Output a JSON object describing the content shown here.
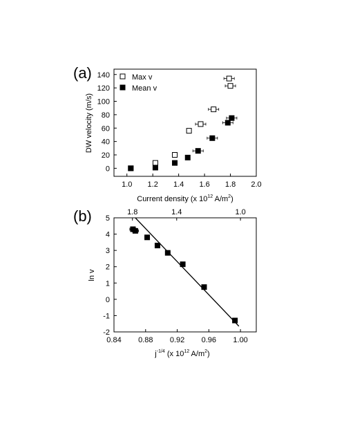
{
  "chart_data": [
    {
      "panel_label": "(a)",
      "type": "scatter",
      "xlabel": "Current density (x 10",
      "xlabel_exp": "12",
      "xlabel_unit": " A/m",
      "xlabel_unit_exp": "2",
      "xlabel_close": ")",
      "ylabel": "DW velocity (m/s)",
      "xlim": [
        0.9,
        2.0
      ],
      "ylim": [
        -12,
        148
      ],
      "xticks": [
        "1.0",
        "1.2",
        "1.4",
        "1.6",
        "1.8",
        "2.0"
      ],
      "xtick_values": [
        1.0,
        1.2,
        1.4,
        1.6,
        1.8,
        2.0
      ],
      "yticks": [
        "0",
        "20",
        "40",
        "60",
        "80",
        "100",
        "120",
        "140"
      ],
      "ytick_values": [
        0,
        20,
        40,
        60,
        80,
        100,
        120,
        140
      ],
      "legend_position": "top-left",
      "series": [
        {
          "name": "Max v",
          "marker": "open-square",
          "points": [
            {
              "x": 1.03,
              "y": 0,
              "xerr": 0
            },
            {
              "x": 1.22,
              "y": 8,
              "xerr": 0
            },
            {
              "x": 1.37,
              "y": 20,
              "xerr": 0
            },
            {
              "x": 1.48,
              "y": 56,
              "xerr": 0
            },
            {
              "x": 1.57,
              "y": 66,
              "xerr": 0.04
            },
            {
              "x": 1.67,
              "y": 88,
              "xerr": 0.04
            },
            {
              "x": 1.79,
              "y": 134,
              "xerr": 0.04
            },
            {
              "x": 1.8,
              "y": 123,
              "xerr": 0.04
            }
          ]
        },
        {
          "name": "Mean v",
          "marker": "filled-square",
          "points": [
            {
              "x": 1.03,
              "y": 0,
              "xerr": 0
            },
            {
              "x": 1.22,
              "y": 1,
              "xerr": 0
            },
            {
              "x": 1.37,
              "y": 8,
              "xerr": 0
            },
            {
              "x": 1.47,
              "y": 16,
              "xerr": 0
            },
            {
              "x": 1.55,
              "y": 26,
              "xerr": 0.04
            },
            {
              "x": 1.66,
              "y": 45,
              "xerr": 0.04
            },
            {
              "x": 1.78,
              "y": 68,
              "xerr": 0.04
            },
            {
              "x": 1.81,
              "y": 75,
              "xerr": 0.04
            }
          ]
        }
      ]
    },
    {
      "panel_label": "(b)",
      "type": "scatter",
      "xlabel": "j",
      "xlabel_exp": "-1/4",
      "xlabel_mid": " (x 10",
      "xlabel_mid_exp": "12",
      "xlabel_unit": " A/m",
      "xlabel_unit_exp": "2",
      "xlabel_close": ")",
      "ylabel": "ln v",
      "xlim": [
        0.84,
        1.02
      ],
      "ylim": [
        -2,
        5
      ],
      "xticks": [
        "0.84",
        "0.88",
        "0.92",
        "0.96",
        "1.00"
      ],
      "xtick_values": [
        0.84,
        0.88,
        0.92,
        0.96,
        1.0
      ],
      "yticks": [
        "-2",
        "-1",
        "0",
        "1",
        "2",
        "3",
        "4",
        "5"
      ],
      "ytick_values": [
        -2,
        -1,
        0,
        1,
        2,
        3,
        4,
        5
      ],
      "top_axis_ticks": [
        "1.8",
        "1.4",
        "1.0"
      ],
      "top_axis_values": [
        1.8,
        1.4,
        1.0
      ],
      "series": [
        {
          "name": "",
          "marker": "filled-square",
          "points": [
            {
              "x": 0.864,
              "y": 4.3,
              "xerr": 0.004
            },
            {
              "x": 0.867,
              "y": 4.2,
              "xerr": 0.004
            },
            {
              "x": 0.882,
              "y": 3.8,
              "xerr": 0.003
            },
            {
              "x": 0.895,
              "y": 3.3,
              "xerr": 0.003
            },
            {
              "x": 0.908,
              "y": 2.85,
              "xerr": 0.003
            },
            {
              "x": 0.927,
              "y": 2.15,
              "xerr": 0.003
            },
            {
              "x": 0.954,
              "y": 0.75,
              "xerr": 0.002
            },
            {
              "x": 0.993,
              "y": -1.3,
              "xerr": 0.002
            }
          ]
        }
      ],
      "fit_line": {
        "x": [
          0.867,
          0.998
        ],
        "y": [
          5.0,
          -1.65
        ]
      }
    }
  ]
}
